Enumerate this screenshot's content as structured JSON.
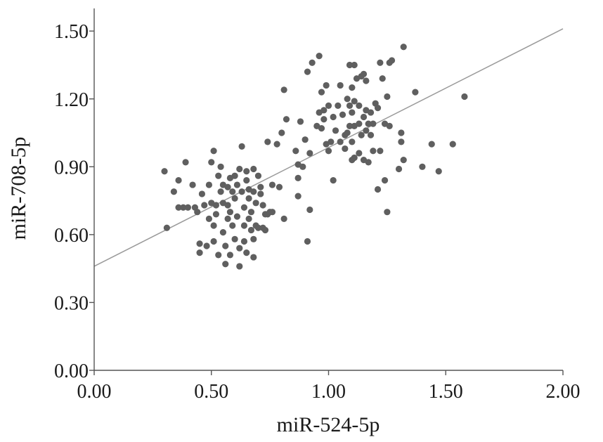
{
  "chart_data": {
    "type": "scatter",
    "xlabel": "miR-524-5p",
    "ylabel": "miR-708-5p",
    "xlim": [
      0,
      2.0
    ],
    "ylim": [
      0,
      1.6
    ],
    "x_ticks": [
      "0.00",
      "0.50",
      "1.00",
      "1.50",
      "2.00"
    ],
    "x_tick_values": [
      0,
      0.5,
      1.0,
      1.5,
      2.0
    ],
    "y_ticks": [
      "0.00",
      "0.30",
      "0.60",
      "0.90",
      "1.20",
      "1.50"
    ],
    "y_tick_values": [
      0,
      0.3,
      0.6,
      0.9,
      1.2,
      1.5
    ],
    "point_color": "#5f5f5f",
    "fit_line": {
      "x": [
        0,
        2.0
      ],
      "y": [
        0.46,
        1.51
      ],
      "color": "#9a9a9a"
    },
    "points": [
      [
        0.3,
        0.88
      ],
      [
        0.31,
        0.63
      ],
      [
        0.34,
        0.79
      ],
      [
        0.36,
        0.72
      ],
      [
        0.36,
        0.84
      ],
      [
        0.38,
        0.72
      ],
      [
        0.39,
        0.92
      ],
      [
        0.4,
        0.72
      ],
      [
        0.42,
        0.82
      ],
      [
        0.43,
        0.72
      ],
      [
        0.44,
        0.7
      ],
      [
        0.45,
        0.52
      ],
      [
        0.45,
        0.56
      ],
      [
        0.46,
        0.78
      ],
      [
        0.47,
        0.73
      ],
      [
        0.48,
        0.55
      ],
      [
        0.49,
        0.82
      ],
      [
        0.49,
        0.67
      ],
      [
        0.5,
        0.74
      ],
      [
        0.5,
        0.92
      ],
      [
        0.51,
        0.97
      ],
      [
        0.51,
        0.64
      ],
      [
        0.51,
        0.57
      ],
      [
        0.52,
        0.73
      ],
      [
        0.52,
        0.69
      ],
      [
        0.53,
        0.51
      ],
      [
        0.53,
        0.86
      ],
      [
        0.54,
        0.79
      ],
      [
        0.54,
        0.9
      ],
      [
        0.55,
        0.82
      ],
      [
        0.55,
        0.74
      ],
      [
        0.55,
        0.61
      ],
      [
        0.56,
        0.55
      ],
      [
        0.56,
        0.47
      ],
      [
        0.57,
        0.81
      ],
      [
        0.57,
        0.73
      ],
      [
        0.57,
        0.67
      ],
      [
        0.58,
        0.85
      ],
      [
        0.58,
        0.7
      ],
      [
        0.58,
        0.51
      ],
      [
        0.59,
        0.79
      ],
      [
        0.59,
        0.64
      ],
      [
        0.6,
        0.86
      ],
      [
        0.6,
        0.76
      ],
      [
        0.6,
        0.58
      ],
      [
        0.61,
        0.82
      ],
      [
        0.61,
        0.68
      ],
      [
        0.62,
        0.89
      ],
      [
        0.62,
        0.54
      ],
      [
        0.62,
        0.46
      ],
      [
        0.63,
        0.99
      ],
      [
        0.63,
        0.79
      ],
      [
        0.64,
        0.72
      ],
      [
        0.64,
        0.64
      ],
      [
        0.64,
        0.57
      ],
      [
        0.65,
        0.88
      ],
      [
        0.65,
        0.84
      ],
      [
        0.65,
        0.52
      ],
      [
        0.66,
        0.8
      ],
      [
        0.66,
        0.76
      ],
      [
        0.66,
        0.67
      ],
      [
        0.67,
        0.62
      ],
      [
        0.67,
        0.7
      ],
      [
        0.68,
        0.89
      ],
      [
        0.68,
        0.79
      ],
      [
        0.68,
        0.58
      ],
      [
        0.68,
        0.5
      ],
      [
        0.69,
        0.74
      ],
      [
        0.69,
        0.64
      ],
      [
        0.7,
        0.86
      ],
      [
        0.7,
        0.63
      ],
      [
        0.71,
        0.81
      ],
      [
        0.71,
        0.78
      ],
      [
        0.72,
        0.73
      ],
      [
        0.72,
        0.63
      ],
      [
        0.73,
        0.62
      ],
      [
        0.73,
        0.69
      ],
      [
        0.74,
        1.01
      ],
      [
        0.74,
        0.69
      ],
      [
        0.75,
        0.7
      ],
      [
        0.76,
        0.7
      ],
      [
        0.76,
        0.82
      ],
      [
        0.78,
        1.0
      ],
      [
        0.79,
        0.81
      ],
      [
        0.8,
        1.05
      ],
      [
        0.81,
        0.67
      ],
      [
        0.81,
        1.24
      ],
      [
        0.82,
        1.11
      ],
      [
        0.86,
        0.97
      ],
      [
        0.87,
        0.91
      ],
      [
        0.87,
        0.85
      ],
      [
        0.87,
        0.77
      ],
      [
        0.88,
        1.1
      ],
      [
        0.89,
        0.9
      ],
      [
        0.9,
        1.02
      ],
      [
        0.91,
        1.32
      ],
      [
        0.91,
        0.57
      ],
      [
        0.92,
        0.71
      ],
      [
        0.92,
        0.96
      ],
      [
        0.93,
        1.36
      ],
      [
        0.95,
        1.08
      ],
      [
        0.96,
        1.39
      ],
      [
        0.96,
        1.14
      ],
      [
        0.97,
        1.23
      ],
      [
        0.97,
        1.07
      ],
      [
        0.98,
        1.11
      ],
      [
        0.98,
        1.15
      ],
      [
        0.99,
        1.26
      ],
      [
        0.99,
        1.0
      ],
      [
        1.0,
        1.17
      ],
      [
        1.0,
        0.97
      ],
      [
        1.01,
        1.01
      ],
      [
        1.02,
        1.12
      ],
      [
        1.02,
        0.84
      ],
      [
        1.03,
        1.06
      ],
      [
        1.04,
        1.17
      ],
      [
        1.05,
        1.01
      ],
      [
        1.05,
        1.26
      ],
      [
        1.06,
        1.13
      ],
      [
        1.07,
        1.04
      ],
      [
        1.07,
        0.98
      ],
      [
        1.08,
        1.2
      ],
      [
        1.08,
        1.05
      ],
      [
        1.09,
        1.35
      ],
      [
        1.09,
        1.17
      ],
      [
        1.09,
        1.08
      ],
      [
        1.1,
        1.25
      ],
      [
        1.1,
        1.14
      ],
      [
        1.1,
        1.01
      ],
      [
        1.1,
        0.93
      ],
      [
        1.11,
        1.35
      ],
      [
        1.11,
        1.19
      ],
      [
        1.11,
        1.08
      ],
      [
        1.11,
        0.94
      ],
      [
        1.12,
        1.29
      ],
      [
        1.13,
        1.17
      ],
      [
        1.13,
        1.09
      ],
      [
        1.13,
        0.96
      ],
      [
        1.14,
        1.3
      ],
      [
        1.14,
        1.04
      ],
      [
        1.15,
        1.31
      ],
      [
        1.15,
        1.12
      ],
      [
        1.15,
        0.93
      ],
      [
        1.16,
        1.28
      ],
      [
        1.16,
        1.15
      ],
      [
        1.16,
        1.06
      ],
      [
        1.17,
        1.09
      ],
      [
        1.17,
        0.92
      ],
      [
        1.18,
        1.04
      ],
      [
        1.18,
        1.14
      ],
      [
        1.19,
        1.09
      ],
      [
        1.19,
        0.97
      ],
      [
        1.2,
        1.18
      ],
      [
        1.21,
        1.16
      ],
      [
        1.21,
        0.8
      ],
      [
        1.22,
        0.97
      ],
      [
        1.22,
        1.36
      ],
      [
        1.23,
        1.29
      ],
      [
        1.24,
        0.84
      ],
      [
        1.24,
        1.09
      ],
      [
        1.25,
        0.7
      ],
      [
        1.25,
        1.21
      ],
      [
        1.26,
        1.08
      ],
      [
        1.26,
        1.36
      ],
      [
        1.27,
        1.37
      ],
      [
        1.3,
        0.89
      ],
      [
        1.31,
        1.05
      ],
      [
        1.31,
        1.01
      ],
      [
        1.32,
        1.43
      ],
      [
        1.32,
        0.93
      ],
      [
        1.37,
        1.23
      ],
      [
        1.4,
        0.9
      ],
      [
        1.44,
        1.0
      ],
      [
        1.47,
        0.88
      ],
      [
        1.53,
        1.0
      ],
      [
        1.58,
        1.21
      ]
    ]
  }
}
